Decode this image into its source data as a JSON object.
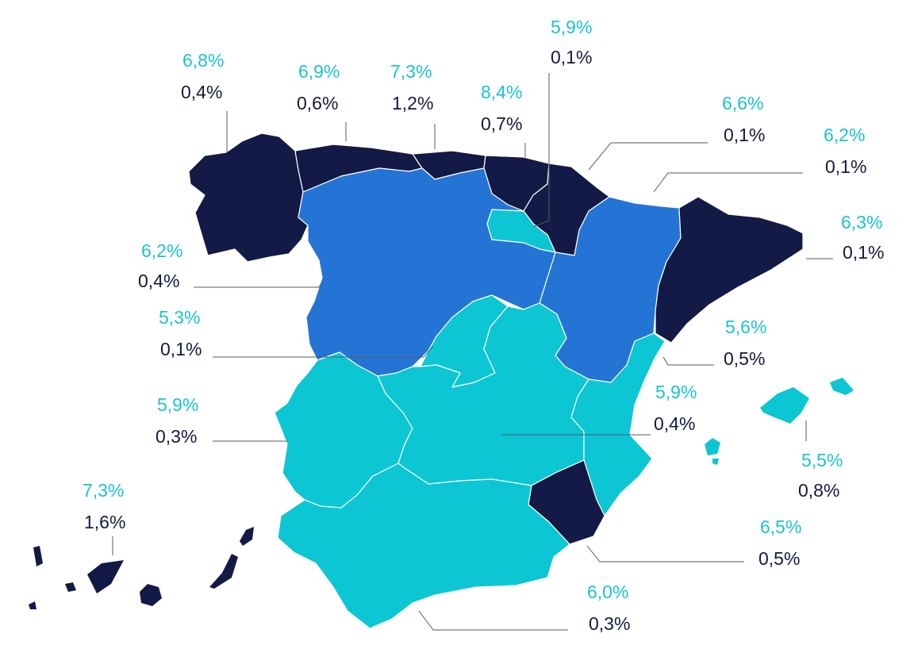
{
  "colors": {
    "dark": "#121a45",
    "mid": "#2474d6",
    "light": "#0cc6d4",
    "label_primary": "#1bc2d2",
    "label_secondary": "#14193d"
  },
  "regions": {
    "galicia": {
      "tier": "dark",
      "value_primary": "6,8%",
      "value_secondary": "0,4%"
    },
    "asturias": {
      "tier": "dark",
      "value_primary": "6,9%",
      "value_secondary": "0,6%"
    },
    "cantabria": {
      "tier": "dark",
      "value_primary": "7,3%",
      "value_secondary": "1,2%"
    },
    "pais_vasco": {
      "tier": "dark",
      "value_primary": "8,4%",
      "value_secondary": "0,7%"
    },
    "navarra": {
      "tier": "dark",
      "value_primary": "5,9%",
      "value_secondary": "0,1%"
    },
    "la_rioja": {
      "tier": "light",
      "value_primary": "6,6%",
      "value_secondary": "0,1%"
    },
    "aragon": {
      "tier": "mid",
      "value_primary": "6,2%",
      "value_secondary": "0,1%"
    },
    "cataluna": {
      "tier": "dark",
      "value_primary": "6,3%",
      "value_secondary": "0,1%"
    },
    "castilla_leon": {
      "tier": "mid",
      "value_primary": "6,2%",
      "value_secondary": "0,4%"
    },
    "madrid": {
      "tier": "light",
      "value_primary": "5,3%",
      "value_secondary": "0,1%"
    },
    "valencia": {
      "tier": "light",
      "value_primary": "5,6%",
      "value_secondary": "0,5%"
    },
    "extremadura": {
      "tier": "light",
      "value_primary": "5,9%",
      "value_secondary": "0,3%"
    },
    "castilla_la_mancha": {
      "tier": "light",
      "value_primary": "5,9%",
      "value_secondary": "0,4%"
    },
    "baleares": {
      "tier": "light",
      "value_primary": "5,5%",
      "value_secondary": "0,8%"
    },
    "murcia": {
      "tier": "dark",
      "value_primary": "6,5%",
      "value_secondary": "0,5%"
    },
    "andalucia": {
      "tier": "light",
      "value_primary": "6,0%",
      "value_secondary": "0,3%"
    },
    "canarias": {
      "tier": "dark",
      "value_primary": "7,3%",
      "value_secondary": "1,6%"
    }
  }
}
